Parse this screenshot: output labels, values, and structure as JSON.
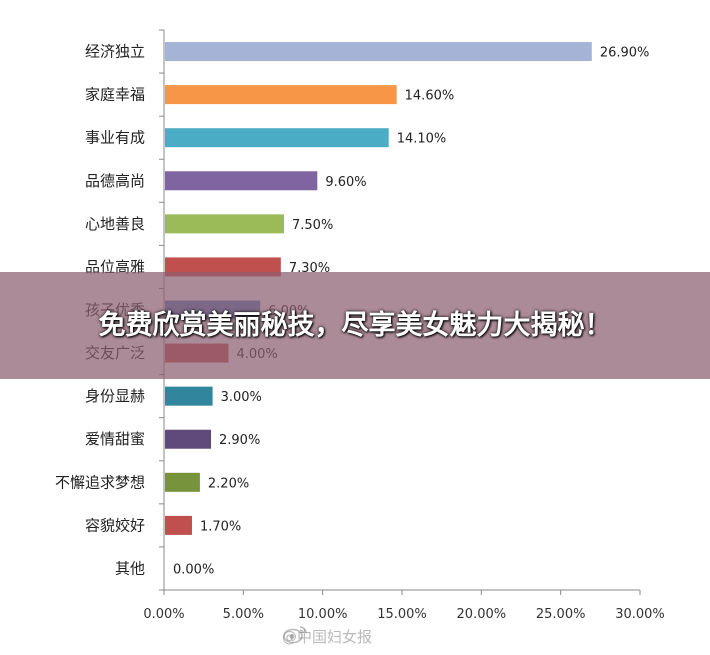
{
  "overlay": {
    "headline": "免费欣赏美丽秘技，尽享美女魅力大揭秘！"
  },
  "watermark": {
    "text": "@中国妇女报"
  },
  "chart_data": {
    "type": "bar",
    "orientation": "horizontal",
    "categories": [
      "经济独立",
      "家庭幸福",
      "事业有成",
      "品德高尚",
      "心地善良",
      "品位高雅",
      "孩子优秀",
      "交友广泛",
      "身份显赫",
      "爱情甜蜜",
      "不懈追求梦想",
      "容貌姣好",
      "其他"
    ],
    "values": [
      26.9,
      14.6,
      14.1,
      9.6,
      7.5,
      7.3,
      6.0,
      4.0,
      3.0,
      2.9,
      2.2,
      1.7,
      0.0
    ],
    "value_labels": [
      "26.90%",
      "14.60%",
      "14.10%",
      "9.60%",
      "7.50%",
      "7.30%",
      "6.00%",
      "4.00%",
      "3.00%",
      "2.90%",
      "2.20%",
      "1.70%",
      "0.00%"
    ],
    "colors": [
      "#a5b4d6",
      "#f79646",
      "#4bacc6",
      "#8064a2",
      "#9bbb59",
      "#c0504d",
      "#4f81bd",
      "#c0504d",
      "#31859c",
      "#604a7b",
      "#77933c",
      "#c0504d",
      "#4f81bd"
    ],
    "xlim": [
      0,
      30
    ],
    "x_ticks": [
      "0.00%",
      "5.00%",
      "10.00%",
      "15.00%",
      "20.00%",
      "25.00%",
      "30.00%"
    ],
    "grid": false,
    "legend": "none"
  }
}
